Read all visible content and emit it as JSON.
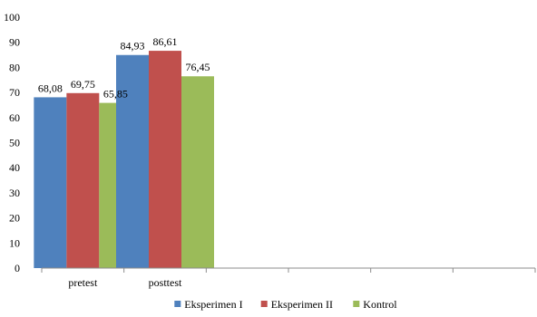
{
  "chart_data": {
    "type": "bar",
    "categories": [
      "pretest",
      "posttest",
      "",
      "",
      "",
      ""
    ],
    "series": [
      {
        "name": "Eksperimen I",
        "color": "#4F81BD",
        "values": [
          68.08,
          84.93,
          null,
          null,
          null,
          null
        ],
        "labels": [
          "68,08",
          "84,93",
          "",
          "",
          "",
          ""
        ]
      },
      {
        "name": "Eksperimen II",
        "color": "#C0504D",
        "values": [
          69.75,
          86.61,
          null,
          null,
          null,
          null
        ],
        "labels": [
          "69,75",
          "86,61",
          "",
          "",
          "",
          ""
        ]
      },
      {
        "name": "Kontrol",
        "color": "#9BBB59",
        "values": [
          65.85,
          76.45,
          null,
          null,
          null,
          null
        ],
        "labels": [
          "65,85",
          "76,45",
          "",
          "",
          "",
          ""
        ]
      }
    ],
    "yticks": [
      "0",
      "10",
      "20",
      "30",
      "40",
      "50",
      "60",
      "70",
      "80",
      "90",
      "100"
    ],
    "ylim": [
      0,
      100
    ],
    "grid": false,
    "legend_position": "bottom",
    "title": "",
    "xlabel": "",
    "ylabel": ""
  }
}
